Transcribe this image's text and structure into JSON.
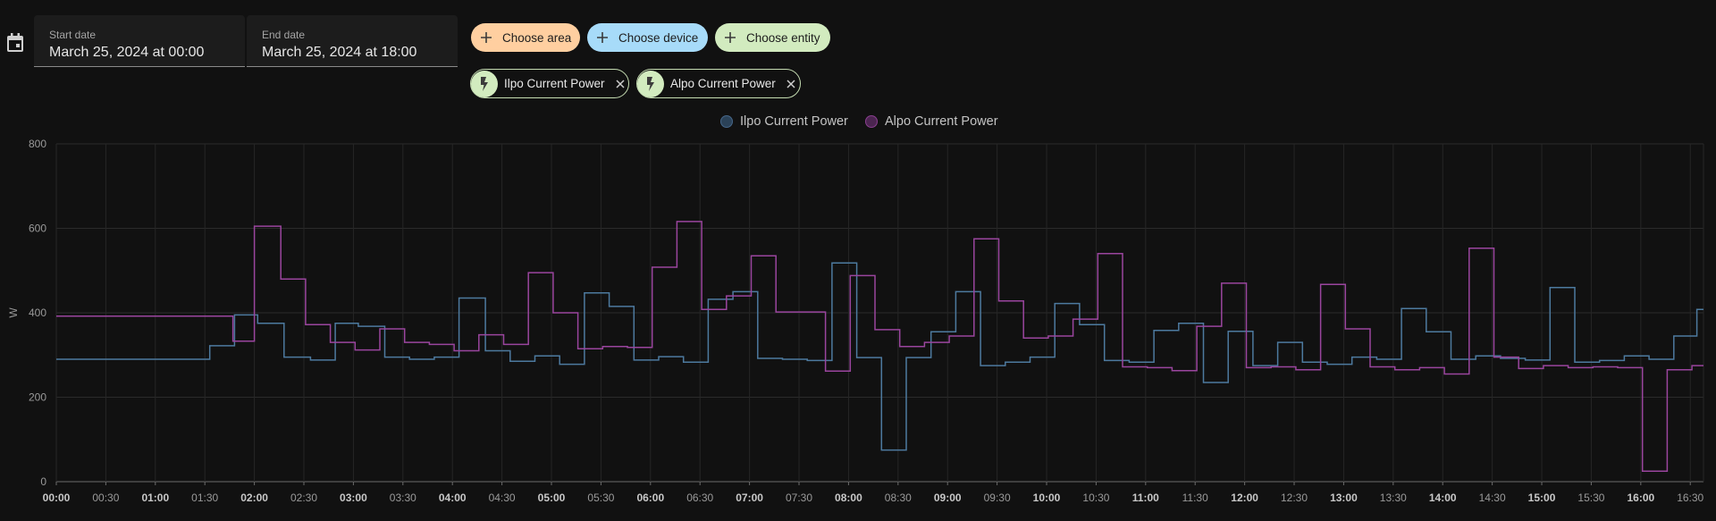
{
  "date_range": {
    "start": {
      "label": "Start date",
      "value": "March 25, 2024 at 00:00"
    },
    "end": {
      "label": "End date",
      "value": "March 25, 2024 at 18:00"
    }
  },
  "target_picker": {
    "choose_area": "Choose area",
    "choose_device": "Choose device",
    "choose_entity": "Choose entity",
    "selected": [
      {
        "label": "Ilpo Current Power",
        "icon": "flash-icon"
      },
      {
        "label": "Alpo Current Power",
        "icon": "flash-icon"
      }
    ]
  },
  "colors": {
    "area": "#ffcfa0",
    "device": "#a7dbf9",
    "entity": "#d2ebbf",
    "ilpo": "#4d7a9f",
    "alpo": "#9a459e",
    "background": "#111111"
  },
  "chart_data": {
    "type": "line",
    "step": true,
    "ylabel": "W",
    "ylim": [
      0,
      800
    ],
    "yticks": [
      0,
      200,
      400,
      600,
      800
    ],
    "xrange_minutes": [
      0,
      998
    ],
    "xticks": [
      {
        "m": 0,
        "label": "00:00",
        "bold": true
      },
      {
        "m": 30,
        "label": "00:30",
        "bold": false
      },
      {
        "m": 60,
        "label": "01:00",
        "bold": true
      },
      {
        "m": 90,
        "label": "01:30",
        "bold": false
      },
      {
        "m": 120,
        "label": "02:00",
        "bold": true
      },
      {
        "m": 150,
        "label": "02:30",
        "bold": false
      },
      {
        "m": 180,
        "label": "03:00",
        "bold": true
      },
      {
        "m": 210,
        "label": "03:30",
        "bold": false
      },
      {
        "m": 240,
        "label": "04:00",
        "bold": true
      },
      {
        "m": 270,
        "label": "04:30",
        "bold": false
      },
      {
        "m": 300,
        "label": "05:00",
        "bold": true
      },
      {
        "m": 330,
        "label": "05:30",
        "bold": false
      },
      {
        "m": 360,
        "label": "06:00",
        "bold": true
      },
      {
        "m": 390,
        "label": "06:30",
        "bold": false
      },
      {
        "m": 420,
        "label": "07:00",
        "bold": true
      },
      {
        "m": 450,
        "label": "07:30",
        "bold": false
      },
      {
        "m": 480,
        "label": "08:00",
        "bold": true
      },
      {
        "m": 510,
        "label": "08:30",
        "bold": false
      },
      {
        "m": 540,
        "label": "09:00",
        "bold": true
      },
      {
        "m": 570,
        "label": "09:30",
        "bold": false
      },
      {
        "m": 600,
        "label": "10:00",
        "bold": true
      },
      {
        "m": 630,
        "label": "10:30",
        "bold": false
      },
      {
        "m": 660,
        "label": "11:00",
        "bold": true
      },
      {
        "m": 690,
        "label": "11:30",
        "bold": false
      },
      {
        "m": 720,
        "label": "12:00",
        "bold": true
      },
      {
        "m": 750,
        "label": "12:30",
        "bold": false
      },
      {
        "m": 780,
        "label": "13:00",
        "bold": true
      },
      {
        "m": 810,
        "label": "13:30",
        "bold": false
      },
      {
        "m": 840,
        "label": "14:00",
        "bold": true
      },
      {
        "m": 870,
        "label": "14:30",
        "bold": false
      },
      {
        "m": 900,
        "label": "15:00",
        "bold": true
      },
      {
        "m": 930,
        "label": "15:30",
        "bold": false
      },
      {
        "m": 960,
        "label": "16:00",
        "bold": true
      },
      {
        "m": 990,
        "label": "16:30",
        "bold": false
      }
    ],
    "legend_position": "top-center",
    "grid": true,
    "series": [
      {
        "name": "Ilpo Current Power",
        "color": "#4d7a9f",
        "points": [
          [
            0,
            290
          ],
          [
            93,
            290
          ],
          [
            93,
            322
          ],
          [
            108,
            322
          ],
          [
            108,
            395
          ],
          [
            122,
            395
          ],
          [
            122,
            375
          ],
          [
            138,
            375
          ],
          [
            138,
            295
          ],
          [
            154,
            295
          ],
          [
            154,
            288
          ],
          [
            169,
            288
          ],
          [
            169,
            375
          ],
          [
            183,
            375
          ],
          [
            183,
            368
          ],
          [
            199,
            368
          ],
          [
            199,
            295
          ],
          [
            214,
            295
          ],
          [
            214,
            290
          ],
          [
            229,
            290
          ],
          [
            229,
            295
          ],
          [
            244,
            295
          ],
          [
            244,
            435
          ],
          [
            260,
            435
          ],
          [
            260,
            310
          ],
          [
            275,
            310
          ],
          [
            275,
            285
          ],
          [
            290,
            285
          ],
          [
            290,
            298
          ],
          [
            305,
            298
          ],
          [
            305,
            278
          ],
          [
            320,
            278
          ],
          [
            320,
            447
          ],
          [
            335,
            447
          ],
          [
            335,
            415
          ],
          [
            350,
            415
          ],
          [
            350,
            288
          ],
          [
            365,
            288
          ],
          [
            365,
            296
          ],
          [
            380,
            296
          ],
          [
            380,
            283
          ],
          [
            395,
            283
          ],
          [
            395,
            432
          ],
          [
            410,
            432
          ],
          [
            410,
            450
          ],
          [
            425,
            450
          ],
          [
            425,
            292
          ],
          [
            440,
            292
          ],
          [
            440,
            290
          ],
          [
            455,
            290
          ],
          [
            455,
            287
          ],
          [
            470,
            287
          ],
          [
            470,
            518
          ],
          [
            485,
            518
          ],
          [
            485,
            294
          ],
          [
            500,
            294
          ],
          [
            500,
            75
          ],
          [
            515,
            75
          ],
          [
            515,
            294
          ],
          [
            530,
            294
          ],
          [
            530,
            355
          ],
          [
            545,
            355
          ],
          [
            545,
            450
          ],
          [
            560,
            450
          ],
          [
            560,
            275
          ],
          [
            575,
            275
          ],
          [
            575,
            283
          ],
          [
            590,
            283
          ],
          [
            590,
            295
          ],
          [
            605,
            295
          ],
          [
            605,
            422
          ],
          [
            620,
            422
          ],
          [
            620,
            372
          ],
          [
            635,
            372
          ],
          [
            635,
            287
          ],
          [
            650,
            287
          ],
          [
            650,
            283
          ],
          [
            665,
            283
          ],
          [
            665,
            358
          ],
          [
            680,
            358
          ],
          [
            680,
            375
          ],
          [
            695,
            375
          ],
          [
            695,
            235
          ],
          [
            710,
            235
          ],
          [
            710,
            356
          ],
          [
            725,
            356
          ],
          [
            725,
            275
          ],
          [
            740,
            275
          ],
          [
            740,
            330
          ],
          [
            755,
            330
          ],
          [
            755,
            283
          ],
          [
            770,
            283
          ],
          [
            770,
            278
          ],
          [
            785,
            278
          ],
          [
            785,
            295
          ],
          [
            800,
            295
          ],
          [
            800,
            290
          ],
          [
            815,
            290
          ],
          [
            815,
            410
          ],
          [
            830,
            410
          ],
          [
            830,
            355
          ],
          [
            845,
            355
          ],
          [
            845,
            290
          ],
          [
            860,
            290
          ],
          [
            860,
            298
          ],
          [
            875,
            298
          ],
          [
            875,
            292
          ],
          [
            890,
            292
          ],
          [
            890,
            288
          ],
          [
            905,
            288
          ],
          [
            905,
            460
          ],
          [
            920,
            460
          ],
          [
            920,
            283
          ],
          [
            935,
            283
          ],
          [
            935,
            287
          ],
          [
            950,
            287
          ],
          [
            950,
            298
          ],
          [
            965,
            298
          ],
          [
            965,
            290
          ],
          [
            980,
            290
          ],
          [
            980,
            345
          ],
          [
            994,
            345
          ],
          [
            994,
            408
          ],
          [
            998,
            408
          ]
        ]
      },
      {
        "name": "Alpo Current Power",
        "color": "#9a459e",
        "points": [
          [
            0,
            392
          ],
          [
            107,
            392
          ],
          [
            107,
            333
          ],
          [
            120,
            333
          ],
          [
            120,
            605
          ],
          [
            136,
            605
          ],
          [
            136,
            480
          ],
          [
            151,
            480
          ],
          [
            151,
            372
          ],
          [
            166,
            372
          ],
          [
            166,
            330
          ],
          [
            181,
            330
          ],
          [
            181,
            312
          ],
          [
            196,
            312
          ],
          [
            196,
            362
          ],
          [
            211,
            362
          ],
          [
            211,
            330
          ],
          [
            226,
            330
          ],
          [
            226,
            325
          ],
          [
            241,
            325
          ],
          [
            241,
            310
          ],
          [
            256,
            310
          ],
          [
            256,
            348
          ],
          [
            271,
            348
          ],
          [
            271,
            325
          ],
          [
            286,
            325
          ],
          [
            286,
            495
          ],
          [
            301,
            495
          ],
          [
            301,
            400
          ],
          [
            316,
            400
          ],
          [
            316,
            315
          ],
          [
            331,
            315
          ],
          [
            331,
            320
          ],
          [
            346,
            320
          ],
          [
            346,
            318
          ],
          [
            361,
            318
          ],
          [
            361,
            508
          ],
          [
            376,
            508
          ],
          [
            376,
            616
          ],
          [
            391,
            616
          ],
          [
            391,
            408
          ],
          [
            406,
            408
          ],
          [
            406,
            440
          ],
          [
            421,
            440
          ],
          [
            421,
            535
          ],
          [
            436,
            535
          ],
          [
            436,
            402
          ],
          [
            451,
            402
          ],
          [
            451,
            402
          ],
          [
            466,
            402
          ],
          [
            466,
            262
          ],
          [
            481,
            262
          ],
          [
            481,
            488
          ],
          [
            496,
            488
          ],
          [
            496,
            360
          ],
          [
            511,
            360
          ],
          [
            511,
            320
          ],
          [
            526,
            320
          ],
          [
            526,
            330
          ],
          [
            541,
            330
          ],
          [
            541,
            345
          ],
          [
            556,
            345
          ],
          [
            556,
            575
          ],
          [
            571,
            575
          ],
          [
            571,
            428
          ],
          [
            586,
            428
          ],
          [
            586,
            340
          ],
          [
            601,
            340
          ],
          [
            601,
            345
          ],
          [
            616,
            345
          ],
          [
            616,
            385
          ],
          [
            631,
            385
          ],
          [
            631,
            540
          ],
          [
            646,
            540
          ],
          [
            646,
            272
          ],
          [
            661,
            272
          ],
          [
            661,
            270
          ],
          [
            676,
            270
          ],
          [
            676,
            263
          ],
          [
            691,
            263
          ],
          [
            691,
            368
          ],
          [
            706,
            368
          ],
          [
            706,
            470
          ],
          [
            721,
            470
          ],
          [
            721,
            270
          ],
          [
            736,
            270
          ],
          [
            736,
            272
          ],
          [
            751,
            272
          ],
          [
            751,
            265
          ],
          [
            766,
            265
          ],
          [
            766,
            467
          ],
          [
            781,
            467
          ],
          [
            781,
            362
          ],
          [
            796,
            362
          ],
          [
            796,
            272
          ],
          [
            811,
            272
          ],
          [
            811,
            265
          ],
          [
            826,
            265
          ],
          [
            826,
            270
          ],
          [
            841,
            270
          ],
          [
            841,
            255
          ],
          [
            856,
            255
          ],
          [
            856,
            553
          ],
          [
            871,
            553
          ],
          [
            871,
            295
          ],
          [
            886,
            295
          ],
          [
            886,
            268
          ],
          [
            901,
            268
          ],
          [
            901,
            275
          ],
          [
            916,
            275
          ],
          [
            916,
            270
          ],
          [
            931,
            270
          ],
          [
            931,
            272
          ],
          [
            946,
            272
          ],
          [
            946,
            270
          ],
          [
            961,
            270
          ],
          [
            961,
            25
          ],
          [
            976,
            25
          ],
          [
            976,
            265
          ],
          [
            991,
            265
          ],
          [
            991,
            275
          ],
          [
            998,
            275
          ]
        ]
      }
    ]
  }
}
